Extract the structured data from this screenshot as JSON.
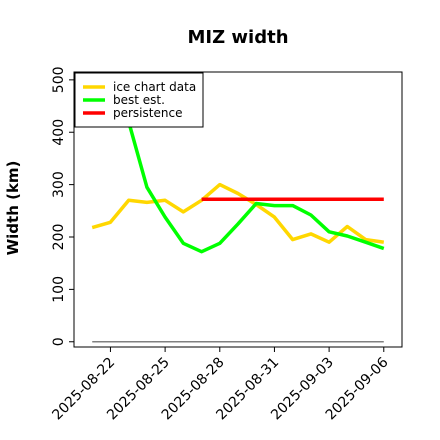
{
  "chart_data": {
    "type": "line",
    "title": "MIZ width",
    "ylabel": "Width (km)",
    "xlabel": "",
    "ylim": [
      -10,
      515
    ],
    "xlim": [
      "2025-08-20",
      "2025-09-07"
    ],
    "yticks": [
      0,
      100,
      200,
      300,
      400,
      500
    ],
    "xticks": [
      "2025-08-22",
      "2025-08-25",
      "2025-08-28",
      "2025-08-31",
      "2025-09-03",
      "2025-09-06"
    ],
    "legend_position": "top-left",
    "grid": false,
    "series": [
      {
        "name": "ice chart data",
        "color": "#ffd700",
        "x": [
          "2025-08-21",
          "2025-08-22",
          "2025-08-23",
          "2025-08-24",
          "2025-08-25",
          "2025-08-26",
          "2025-08-27",
          "2025-08-28",
          "2025-08-29",
          "2025-08-30",
          "2025-08-31",
          "2025-09-01",
          "2025-09-02",
          "2025-09-03",
          "2025-09-04",
          "2025-09-05",
          "2025-09-06"
        ],
        "y": [
          218,
          228,
          270,
          266,
          270,
          248,
          270,
          300,
          283,
          262,
          238,
          195,
          206,
          190,
          220,
          195,
          190
        ]
      },
      {
        "name": "best est.",
        "color": "#00ff00",
        "x": [
          "2025-08-22",
          "2025-08-23",
          "2025-08-24",
          "2025-08-25",
          "2025-08-26",
          "2025-08-27",
          "2025-08-28",
          "2025-08-29",
          "2025-08-30",
          "2025-08-31",
          "2025-09-01",
          "2025-09-02",
          "2025-09-03",
          "2025-09-04",
          "2025-09-05",
          "2025-09-06"
        ],
        "y": [
          500,
          420,
          295,
          238,
          188,
          172,
          188,
          225,
          264,
          260,
          260,
          242,
          210,
          202,
          190,
          178
        ]
      },
      {
        "name": "persistence",
        "color": "#ff0000",
        "x": [
          "2025-08-27",
          "2025-09-06"
        ],
        "y": [
          272,
          272
        ]
      }
    ],
    "baseline": {
      "color": "#808080",
      "y": 0,
      "x": [
        "2025-08-21",
        "2025-09-06"
      ]
    }
  }
}
